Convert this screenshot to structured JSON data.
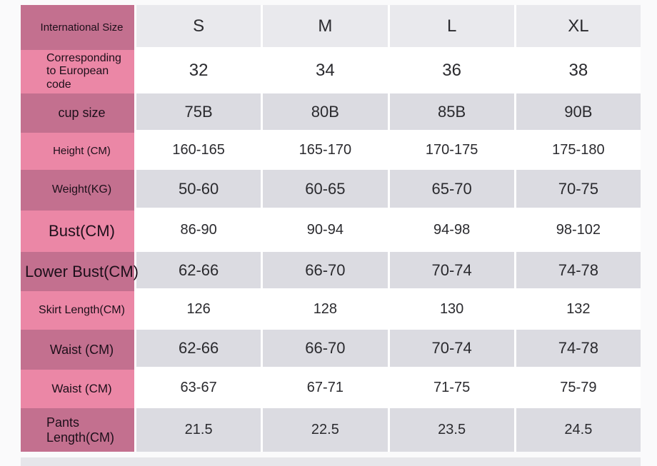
{
  "colors": {
    "pink_dark": "#c3708f",
    "pink_light": "#eb87a6",
    "row_gray": "#dbdbe1",
    "header_gray": "#e9e9ed",
    "strip_gray": "#e6e6ea"
  },
  "chart_data": {
    "type": "table",
    "title": "Garment size chart",
    "columns": [
      "S",
      "M",
      "L",
      "XL"
    ],
    "rows": [
      {
        "label": "International Size",
        "values": [
          "S",
          "M",
          "L",
          "XL"
        ]
      },
      {
        "label": "Corresponding to European code",
        "values": [
          "32",
          "34",
          "36",
          "38"
        ]
      },
      {
        "label": "cup size",
        "values": [
          "75B",
          "80B",
          "85B",
          "90B"
        ]
      },
      {
        "label": "Height (CM)",
        "values": [
          "160-165",
          "165-170",
          "170-175",
          "175-180"
        ]
      },
      {
        "label": "Weight(KG)",
        "values": [
          "50-60",
          "60-65",
          "65-70",
          "70-75"
        ]
      },
      {
        "label": "Bust(CM)",
        "values": [
          "86-90",
          "90-94",
          "94-98",
          "98-102"
        ]
      },
      {
        "label": "Lower Bust(CM)",
        "values": [
          "62-66",
          "66-70",
          "70-74",
          "74-78"
        ]
      },
      {
        "label": "Skirt Length(CM)",
        "values": [
          "126",
          "128",
          "130",
          "132"
        ]
      },
      {
        "label": "Waist (CM)",
        "values": [
          "62-66",
          "66-70",
          "70-74",
          "74-78"
        ]
      },
      {
        "label": "Waist (CM)",
        "values": [
          "63-67",
          "67-71",
          "71-75",
          "75-79"
        ]
      },
      {
        "label": "Pants Length(CM)",
        "values": [
          "21.5",
          "22.5",
          "23.5",
          "24.5"
        ]
      }
    ]
  }
}
